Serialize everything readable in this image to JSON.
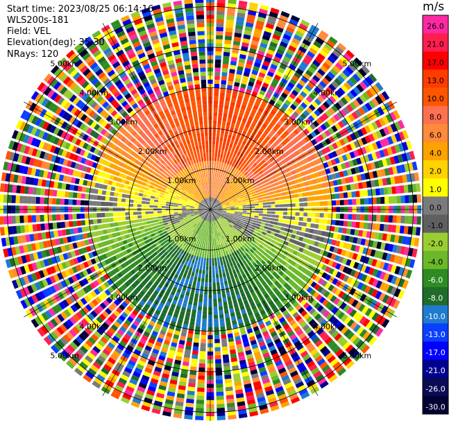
{
  "header": {
    "start_time": "Start time: 2023/08/25 06:14:16",
    "instrument": "WLS200s-181",
    "field": "Field: VEL",
    "elevation": "Elevation(deg): 35.30",
    "nrays": "NRays: 120"
  },
  "chart_data": {
    "type": "heatmap",
    "title": "",
    "field": "VEL",
    "projection": "polar PPI",
    "n_rays": 120,
    "elevation_deg": 35.3,
    "range_rings_km": [
      1.0,
      2.0,
      3.0,
      4.0,
      5.0
    ],
    "ring_labels": [
      "1.00km",
      "2.00km",
      "3.00km",
      "4.00km",
      "5.00km"
    ],
    "max_range_km": 5.2,
    "valid_range_km": 3.0,
    "colorbar": {
      "unit": "m/s",
      "placement": "right",
      "ticks": [
        "26.0",
        "21.0",
        "17.0",
        "13.0",
        "10.0",
        "8.0",
        "6.0",
        "4.0",
        "2.0",
        "1.0",
        "0.0",
        "-1.0",
        "-2.0",
        "-4.0",
        "-6.0",
        "-8.0",
        "-10.0",
        "-13.0",
        "-17.0",
        "-21.0",
        "-26.0",
        "-30.0"
      ],
      "colors": [
        "#ff2aa3",
        "#ff1f4f",
        "#ff0000",
        "#ff3c00",
        "#ff5500",
        "#ff7050",
        "#ff8a3a",
        "#ffa200",
        "#ffd200",
        "#ffff00",
        "#7a7a7a",
        "#5f5f5f",
        "#9acd32",
        "#6bb82a",
        "#2e8b22",
        "#1e6b2a",
        "#1f7bd0",
        "#0a3fff",
        "#0000ff",
        "#000090",
        "#0a0a55",
        "#000033"
      ]
    },
    "velocity_pattern": {
      "north": "6.0 to 13.0 (orange/red)",
      "north_inner": "2.0 to 4.0 (yellow)",
      "center": "0.0 to 1.0 (gray)",
      "south_inner": "-2.0 to -4.0 (light green)",
      "south": "-6.0 to -10.0 (green/blue)"
    }
  }
}
